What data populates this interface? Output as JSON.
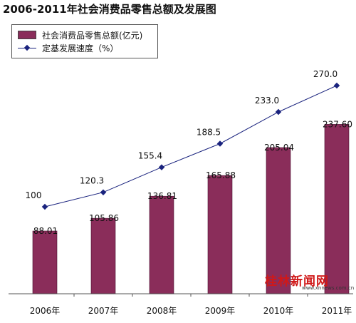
{
  "chart_data": {
    "type": "bar",
    "title": "2006-2011年社会消费品零售总额及发展图",
    "categories": [
      "2006年",
      "2007年",
      "2008年",
      "2009年",
      "2010年",
      "2011年"
    ],
    "series": [
      {
        "name": "社会消费品零售总额(亿元)",
        "kind": "bar",
        "values": [
          88.01,
          105.86,
          136.81,
          165.88,
          205.04,
          237.6
        ],
        "labels": [
          "88.01",
          "105.86",
          "136.81",
          "165.88",
          "205.04",
          "237.60"
        ],
        "color": "#8a2d5a"
      },
      {
        "name": "定基发展速度（%）",
        "kind": "line",
        "values": [
          100,
          120.3,
          155.4,
          188.5,
          233.0,
          270.0
        ],
        "labels": [
          "100",
          "120.3",
          "155.4",
          "188.5",
          "233.0",
          "270.0"
        ],
        "color": "#1a237e"
      }
    ],
    "grid": false,
    "legend_position": "top-left"
  },
  "watermark": {
    "main": "桂林新闻网",
    "url": "www.xnnews.com.cn"
  }
}
